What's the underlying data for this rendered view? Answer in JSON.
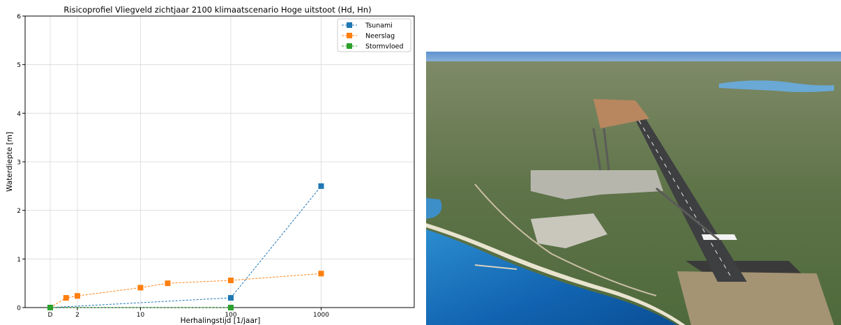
{
  "chart_data": {
    "type": "line",
    "title": "Risicoprofiel Vliegveld zichtjaar 2100 klimaatscenario Hoge uitstoot (Hd, Hn)",
    "xlabel": "Herhalingstijd [1/jaar]",
    "ylabel": "Waterdiepte [m]",
    "x_ticks": [
      "D",
      "2",
      "10",
      "100",
      "1000"
    ],
    "y_ticks": [
      "0",
      "1",
      "2",
      "3",
      "4",
      "5",
      "6"
    ],
    "ylim": [
      0,
      6
    ],
    "grid": true,
    "legend_position": "top-right",
    "series": [
      {
        "name": "Tsunami",
        "color": "#1f77b4",
        "points": [
          {
            "x": "D",
            "y": 0.0
          },
          {
            "x": 100,
            "y": 0.2
          },
          {
            "x": 1000,
            "y": 2.5
          }
        ]
      },
      {
        "name": "Neerslag",
        "color": "#ff7f0e",
        "points": [
          {
            "x": "D",
            "y": 0.0
          },
          {
            "x": 1.5,
            "y": 0.2
          },
          {
            "x": 2,
            "y": 0.24
          },
          {
            "x": 10,
            "y": 0.41
          },
          {
            "x": 20,
            "y": 0.5
          },
          {
            "x": 100,
            "y": 0.56
          },
          {
            "x": 1000,
            "y": 0.7
          }
        ]
      },
      {
        "name": "Stormvloed",
        "color": "#2ca02c",
        "points": [
          {
            "x": "D",
            "y": 0.0
          },
          {
            "x": 100,
            "y": 0.0
          }
        ]
      }
    ]
  },
  "photo": {
    "description_icon": "aerial-airport-photo",
    "sky_color": "#6f9fd4",
    "sea_color": "#1e6fb8"
  }
}
